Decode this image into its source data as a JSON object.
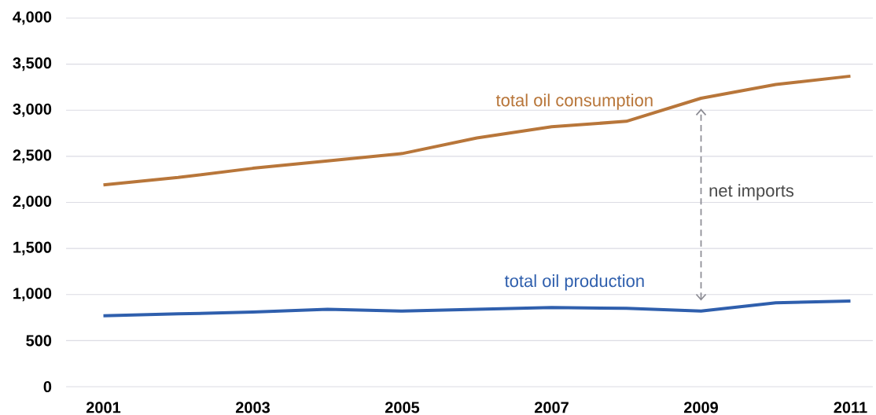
{
  "chart_data": {
    "type": "line",
    "x": [
      2001,
      2002,
      2003,
      2004,
      2005,
      2006,
      2007,
      2008,
      2009,
      2010,
      2011
    ],
    "series": [
      {
        "name": "total oil consumption",
        "color": "#b8763a",
        "values": [
          2190,
          2270,
          2370,
          2450,
          2530,
          2700,
          2820,
          2880,
          3130,
          3280,
          3370
        ]
      },
      {
        "name": "total oil production",
        "color": "#2f5fad",
        "values": [
          770,
          790,
          810,
          840,
          820,
          840,
          860,
          850,
          820,
          910,
          930
        ]
      }
    ],
    "xlim": [
      2000.5,
      2011.3
    ],
    "ylim": [
      0,
      4000
    ],
    "xticks": [
      2001,
      2003,
      2005,
      2007,
      2009,
      2011
    ],
    "yticks": [
      0,
      500,
      {
        "value": 1000,
        "label": "1,000"
      },
      {
        "value": 1500,
        "label": "1,500"
      },
      {
        "value": 2000,
        "label": "2,000"
      },
      {
        "value": 2500,
        "label": "2,500"
      },
      {
        "value": 3000,
        "label": "3,000"
      },
      {
        "value": 3500,
        "label": "3,500"
      },
      {
        "value": 4000,
        "label": "4,000"
      }
    ],
    "grid": "y",
    "annotations": [
      "net imports"
    ]
  }
}
